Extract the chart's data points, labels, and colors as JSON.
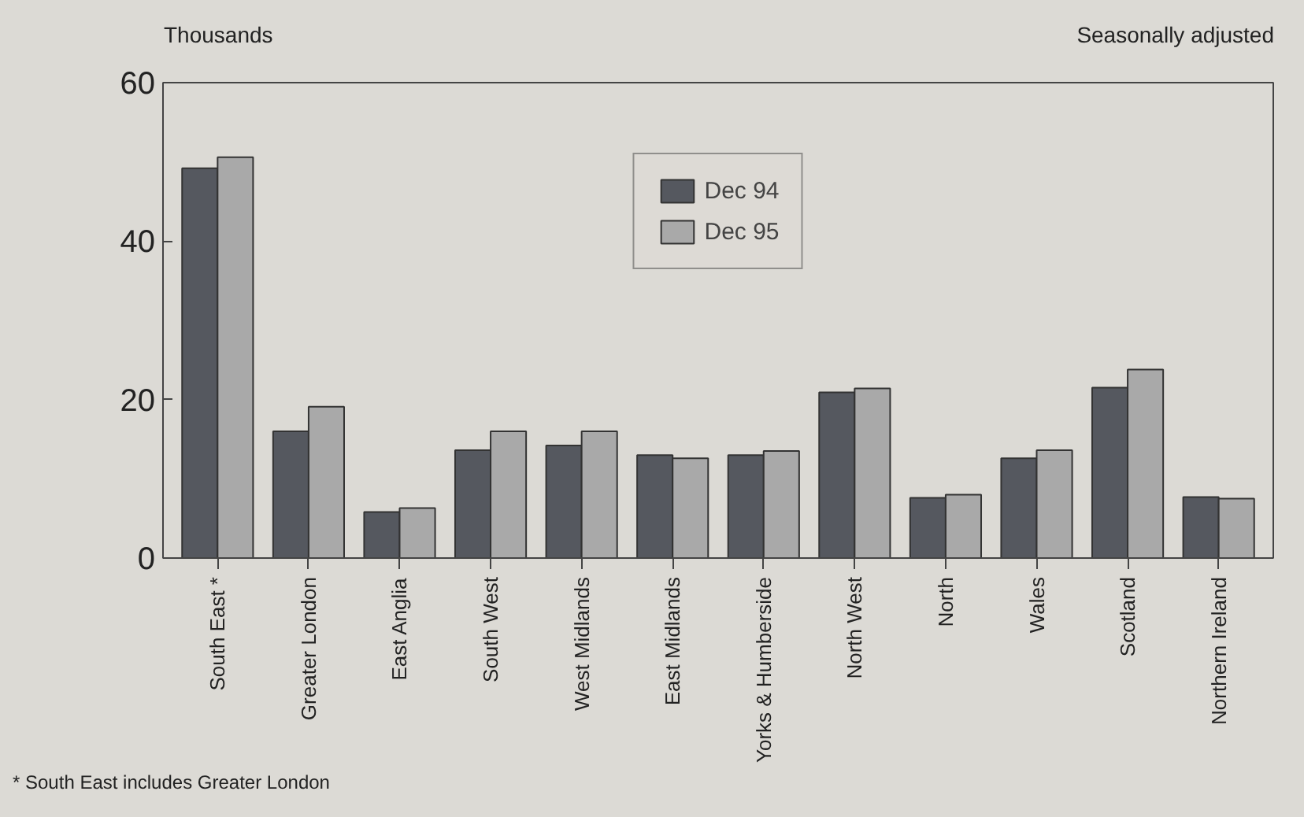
{
  "chart_data": {
    "type": "bar",
    "ylabel": "Thousands",
    "subtitle": "Seasonally adjusted",
    "categories": [
      "South East *",
      "Greater London",
      "East Anglia",
      "South West",
      "West Midlands",
      "East Midlands",
      "Yorks & Humberside",
      "North West",
      "North",
      "Wales",
      "Scotland",
      "Northern Ireland"
    ],
    "series": [
      {
        "name": "Dec 94",
        "color": "#55585f",
        "values": [
          49.2,
          16.0,
          5.8,
          13.6,
          14.2,
          13.0,
          13.0,
          20.9,
          7.6,
          12.6,
          21.5,
          7.7
        ]
      },
      {
        "name": "Dec 95",
        "color": "#a9a9a9",
        "values": [
          50.6,
          19.1,
          6.3,
          16.0,
          16.0,
          12.6,
          13.5,
          21.4,
          8.0,
          13.6,
          23.8,
          7.5
        ]
      }
    ],
    "ylim": [
      0,
      60
    ],
    "yticks": [
      0,
      20,
      40,
      60
    ],
    "grid": false,
    "legend": "top",
    "annotations": [
      "* South East includes Greater London"
    ]
  }
}
